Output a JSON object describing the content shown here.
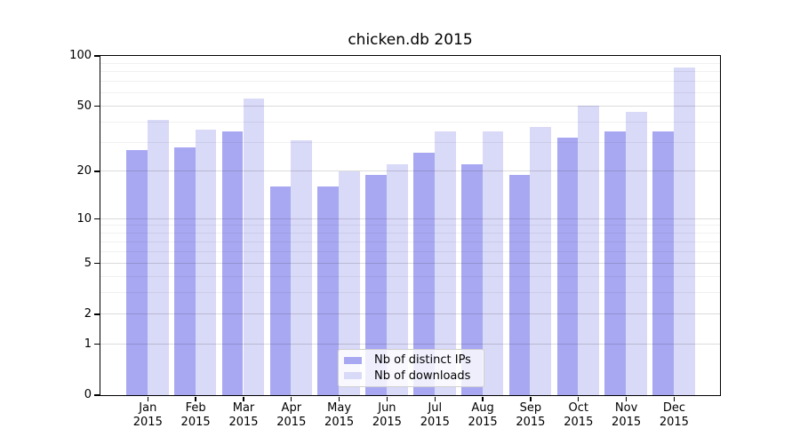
{
  "chart_data": {
    "type": "bar",
    "title": "chicken.db 2015",
    "x_tick_months": [
      "Jan",
      "Feb",
      "Mar",
      "Apr",
      "May",
      "Jun",
      "Jul",
      "Aug",
      "Sep",
      "Oct",
      "Nov",
      "Dec"
    ],
    "x_tick_year": "2015",
    "series": [
      {
        "name": "Nb of distinct IPs",
        "color": "#a8a8f2",
        "values": [
          27,
          28,
          35,
          16,
          16,
          19,
          26,
          22,
          19,
          32,
          35,
          35
        ]
      },
      {
        "name": "Nb of downloads",
        "color": "#d9d9f8",
        "values": [
          41,
          36,
          55,
          31,
          20,
          22,
          35,
          35,
          37,
          50,
          46,
          85
        ]
      }
    ],
    "yscale": "log1p",
    "ylim": [
      0,
      100
    ],
    "yticks": [
      0,
      1,
      2,
      5,
      10,
      20,
      50,
      100
    ],
    "yticks_minor": [
      3,
      4,
      6,
      7,
      8,
      9,
      30,
      40,
      60,
      70,
      80,
      90
    ],
    "grid": true,
    "legend_position": "lower center"
  },
  "colors": {
    "spine": "#000000",
    "grid_major": "rgba(0,0,0,0.14)",
    "grid_minor": "rgba(0,0,0,0.06)",
    "legend_background": "rgba(255,255,255,0.8)",
    "legend_border": "#d0d0d0"
  }
}
